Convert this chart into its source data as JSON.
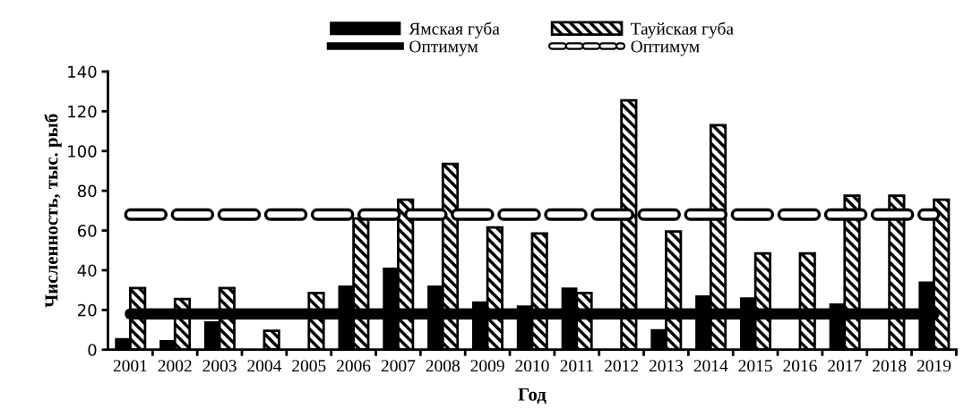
{
  "chart_data": {
    "type": "bar",
    "xlabel": "Год",
    "ylabel": "Численность, тыс. рыб",
    "categories": [
      "2001",
      "2002",
      "2003",
      "2004",
      "2005",
      "2006",
      "2007",
      "2008",
      "2009",
      "2010",
      "2011",
      "2012",
      "2013",
      "2014",
      "2015",
      "2016",
      "2017",
      "2018",
      "2019"
    ],
    "series": [
      {
        "name": "Ямская губа",
        "color": "#000000",
        "values": [
          5.5,
          4.5,
          14,
          null,
          null,
          32,
          41,
          32,
          24,
          22,
          31,
          null,
          10,
          27,
          26,
          null,
          23,
          null,
          34
        ]
      },
      {
        "name": "Тауйская губа",
        "color": "#000000",
        "values": [
          31,
          25.5,
          31,
          9.5,
          28.5,
          66,
          75.5,
          93.5,
          61.5,
          58.5,
          28.5,
          125.5,
          59.5,
          113,
          48.5,
          48.5,
          77.5,
          77.5,
          75.5
        ]
      },
      {
        "name": "Оптимум",
        "type": "line",
        "color": "#000000",
        "line_style": "solid",
        "values": [
          18,
          18,
          18,
          18,
          18,
          18,
          18,
          18,
          18,
          18,
          18,
          18,
          18,
          18,
          18,
          18,
          18,
          18,
          18
        ]
      },
      {
        "name": "Оптимум",
        "type": "line",
        "color": "#000000",
        "line_style": "dashed",
        "values": [
          68,
          68,
          68,
          68,
          68,
          68,
          68,
          68,
          68,
          68,
          68,
          68,
          68,
          68,
          68,
          68,
          68,
          68,
          68
        ]
      }
    ],
    "ylim": [
      0,
      140
    ],
    "yticks": [
      0,
      20,
      40,
      60,
      80,
      100,
      120,
      140
    ],
    "grid": false,
    "legend": "top"
  }
}
